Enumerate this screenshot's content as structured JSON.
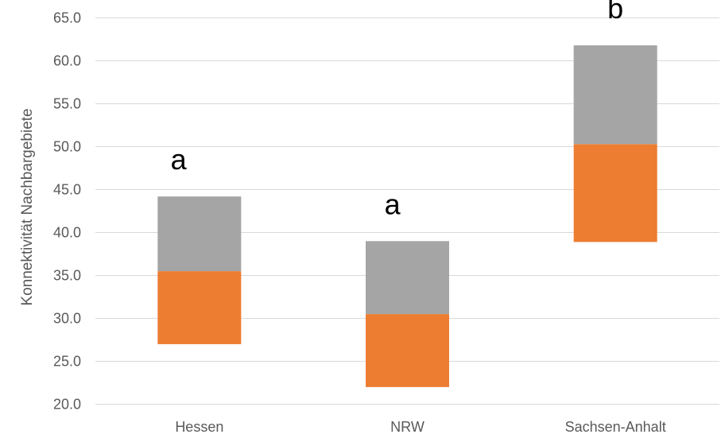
{
  "chart_data": {
    "type": "bar",
    "subtype": "floating-stacked-box",
    "title": "",
    "xlabel": "",
    "ylabel": "Konnektivität Nachbargebiete",
    "ylim": [
      20.0,
      65.0
    ],
    "ytick_step": 5,
    "ytick_labels": [
      "20.0",
      "25.0",
      "30.0",
      "35.0",
      "40.0",
      "45.0",
      "50.0",
      "55.0",
      "60.0",
      "65.0"
    ],
    "grid": "horizontal",
    "legend": "none",
    "categories": [
      "Hessen",
      "NRW",
      "Sachsen-Anhalt"
    ],
    "series": [
      {
        "key": "lower",
        "color": "#ed7d31",
        "ranges": [
          [
            27.0,
            35.5
          ],
          [
            22.0,
            30.5
          ],
          [
            38.9,
            50.3
          ]
        ]
      },
      {
        "key": "upper",
        "color": "#a5a5a5",
        "ranges": [
          [
            35.5,
            44.2
          ],
          [
            30.5,
            39.0
          ],
          [
            50.3,
            61.8
          ]
        ]
      }
    ],
    "annotations": [
      "a",
      "a",
      "b"
    ]
  }
}
